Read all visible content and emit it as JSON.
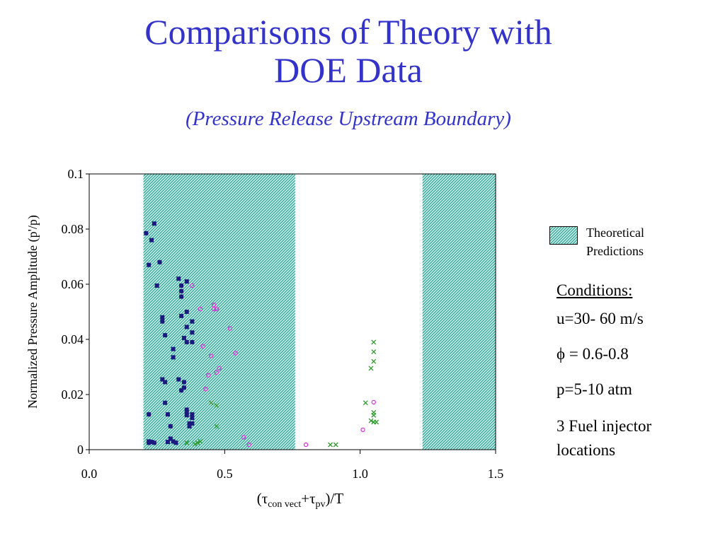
{
  "header": {
    "title_line1": "Comparisons of Theory with",
    "title_line2": "DOE Data",
    "subtitle": "(Pressure Release Upstream Boundary)"
  },
  "legend": {
    "label_line1": "Theoretical",
    "label_line2": "Predictions"
  },
  "conditions": {
    "heading": "Conditions:",
    "items": [
      "u=30- 60 m/s",
      "ϕ = 0.6-0.8",
      "p=5-10 atm",
      "3 Fuel injector locations"
    ]
  },
  "colors": {
    "title": "#3333cc",
    "band_fill": "#2bb39e",
    "series_a": "#1a1a80",
    "series_b": "#e028e0",
    "series_c": "#2e9a2e"
  },
  "chart_data": {
    "type": "scatter",
    "title": "",
    "xlabel": "(τconvect+τpv)/T",
    "ylabel": "Normalized Pressure Amplitude (p'/p)",
    "xlim": [
      0,
      1.5
    ],
    "ylim": [
      0,
      0.1
    ],
    "x_ticks": [
      "0.0",
      "0.5",
      "1.0",
      "1.5"
    ],
    "y_ticks": [
      "0",
      "0.02",
      "0.04",
      "0.06",
      "0.08",
      "0.1"
    ],
    "theoretical_regions": [
      [
        0.2,
        0.76
      ],
      [
        1.23,
        1.5
      ]
    ],
    "series": [
      {
        "marker": "square",
        "color": "#1a1a80",
        "points": [
          [
            0.21,
            0.0785
          ],
          [
            0.24,
            0.082
          ],
          [
            0.23,
            0.076
          ],
          [
            0.22,
            0.067
          ],
          [
            0.26,
            0.068
          ],
          [
            0.25,
            0.0595
          ],
          [
            0.27,
            0.048
          ],
          [
            0.27,
            0.0465
          ],
          [
            0.28,
            0.0415
          ],
          [
            0.31,
            0.0365
          ],
          [
            0.31,
            0.0335
          ],
          [
            0.27,
            0.0255
          ],
          [
            0.28,
            0.0245
          ],
          [
            0.28,
            0.017
          ],
          [
            0.22,
            0.0128
          ],
          [
            0.29,
            0.0128
          ],
          [
            0.3,
            0.0085
          ],
          [
            0.22,
            0.003
          ],
          [
            0.23,
            0.0028
          ],
          [
            0.22,
            0.0025
          ],
          [
            0.24,
            0.0025
          ],
          [
            0.29,
            0.0028
          ],
          [
            0.3,
            0.004
          ],
          [
            0.31,
            0.003
          ],
          [
            0.32,
            0.0025
          ],
          [
            0.33,
            0.062
          ],
          [
            0.34,
            0.0595
          ],
          [
            0.34,
            0.0575
          ],
          [
            0.34,
            0.0555
          ],
          [
            0.36,
            0.061
          ],
          [
            0.36,
            0.05
          ],
          [
            0.34,
            0.0485
          ],
          [
            0.38,
            0.0465
          ],
          [
            0.36,
            0.0445
          ],
          [
            0.38,
            0.0425
          ],
          [
            0.35,
            0.0405
          ],
          [
            0.36,
            0.039
          ],
          [
            0.38,
            0.039
          ],
          [
            0.33,
            0.0255
          ],
          [
            0.35,
            0.0245
          ],
          [
            0.35,
            0.0225
          ],
          [
            0.34,
            0.0215
          ],
          [
            0.36,
            0.0145
          ],
          [
            0.36,
            0.0135
          ],
          [
            0.36,
            0.0125
          ],
          [
            0.38,
            0.0128
          ],
          [
            0.38,
            0.0115
          ],
          [
            0.37,
            0.0095
          ],
          [
            0.38,
            0.0095
          ],
          [
            0.37,
            0.0085
          ]
        ]
      },
      {
        "marker": "circle",
        "color": "#e028e0",
        "points": [
          [
            0.38,
            0.0595
          ],
          [
            0.41,
            0.051
          ],
          [
            0.46,
            0.0525
          ],
          [
            0.46,
            0.051
          ],
          [
            0.47,
            0.051
          ],
          [
            0.52,
            0.044
          ],
          [
            0.42,
            0.0375
          ],
          [
            0.54,
            0.035
          ],
          [
            0.45,
            0.034
          ],
          [
            0.48,
            0.0295
          ],
          [
            0.47,
            0.028
          ],
          [
            0.44,
            0.027
          ],
          [
            0.43,
            0.022
          ],
          [
            0.57,
            0.0045
          ],
          [
            0.59,
            0.0018
          ],
          [
            0.8,
            0.0018
          ],
          [
            1.05,
            0.0172
          ],
          [
            1.01,
            0.0072
          ]
        ]
      },
      {
        "marker": "x",
        "color": "#2e9a2e",
        "points": [
          [
            1.05,
            0.039
          ],
          [
            1.05,
            0.0355
          ],
          [
            1.05,
            0.032
          ],
          [
            1.04,
            0.0295
          ],
          [
            1.02,
            0.017
          ],
          [
            1.05,
            0.0135
          ],
          [
            1.05,
            0.0125
          ],
          [
            1.04,
            0.0105
          ],
          [
            1.05,
            0.01
          ],
          [
            1.06,
            0.01
          ],
          [
            0.89,
            0.0018
          ],
          [
            0.91,
            0.0018
          ],
          [
            0.45,
            0.017
          ],
          [
            0.47,
            0.016
          ],
          [
            0.47,
            0.0085
          ],
          [
            0.36,
            0.0025
          ],
          [
            0.4,
            0.0025
          ],
          [
            0.41,
            0.003
          ],
          [
            0.39,
            0.002
          ]
        ]
      }
    ]
  }
}
